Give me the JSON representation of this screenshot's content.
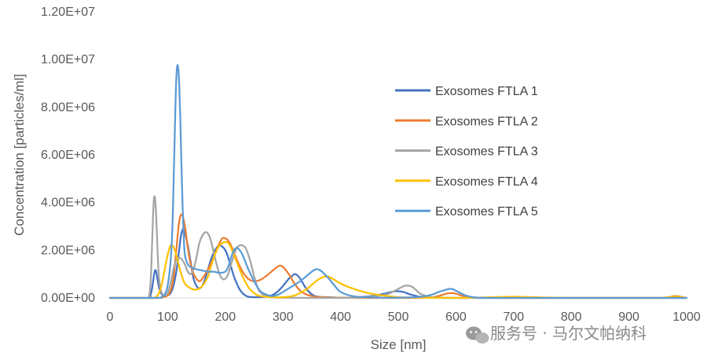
{
  "chart_data": {
    "type": "line",
    "title": "",
    "xlabel": "Size [nm]",
    "ylabel": "Concentration [particles/ml]",
    "xlim": [
      0,
      1000
    ],
    "ylim": [
      0,
      12000000
    ],
    "x_ticks": [
      0,
      100,
      200,
      300,
      400,
      500,
      600,
      700,
      800,
      900,
      1000
    ],
    "x_tick_labels": [
      "0",
      "100",
      "200",
      "300",
      "400",
      "500",
      "600",
      "700",
      "800",
      "900",
      "1000"
    ],
    "y_ticks": [
      0,
      2000000,
      4000000,
      6000000,
      8000000,
      10000000,
      12000000
    ],
    "y_tick_labels": [
      "0.00E+00",
      "2.00E+06",
      "4.00E+06",
      "6.00E+06",
      "8.00E+06",
      "1.00E+07",
      "1.20E+07"
    ],
    "grid": false,
    "legend_position": "right",
    "series": [
      {
        "name": "Exosomes FTLA 1",
        "color": "#4472C4",
        "x": [
          0,
          65,
          70,
          73,
          76,
          78,
          80,
          83,
          86,
          90,
          95,
          100,
          105,
          110,
          115,
          120,
          123,
          127,
          130,
          135,
          140,
          145,
          150,
          155,
          160,
          165,
          170,
          175,
          180,
          185,
          190,
          195,
          200,
          205,
          210,
          215,
          220,
          225,
          230,
          235,
          240,
          250,
          260,
          270,
          280,
          290,
          300,
          310,
          315,
          320,
          325,
          330,
          335,
          340,
          350,
          360,
          380,
          400,
          430,
          460,
          480,
          490,
          500,
          510,
          520,
          540,
          560,
          600,
          650,
          700,
          800,
          900,
          950,
          980,
          1000
        ],
        "y": [
          0,
          0,
          100000,
          400000,
          900000,
          1150000,
          1100000,
          700000,
          350000,
          150000,
          80000,
          100000,
          200000,
          500000,
          1100000,
          2000000,
          2600000,
          2900000,
          2700000,
          2200000,
          1500000,
          800000,
          500000,
          400000,
          500000,
          800000,
          1200000,
          1600000,
          1900000,
          2100000,
          2200000,
          2150000,
          2000000,
          1700000,
          1300000,
          900000,
          600000,
          350000,
          200000,
          100000,
          50000,
          30000,
          30000,
          50000,
          100000,
          250000,
          500000,
          800000,
          900000,
          1000000,
          950000,
          800000,
          600000,
          400000,
          150000,
          50000,
          30000,
          10000,
          30000,
          100000,
          200000,
          260000,
          280000,
          240000,
          150000,
          40000,
          10000,
          0,
          0,
          0,
          0,
          0,
          0,
          0,
          0
        ]
      },
      {
        "name": "Exosomes FTLA 2",
        "color": "#ED7D31",
        "x": [
          0,
          80,
          90,
          100,
          105,
          110,
          115,
          120,
          125,
          130,
          135,
          140,
          145,
          150,
          155,
          160,
          170,
          180,
          185,
          190,
          195,
          200,
          205,
          210,
          215,
          220,
          230,
          240,
          250,
          260,
          270,
          280,
          290,
          295,
          300,
          310,
          320,
          330,
          340,
          350,
          360,
          380,
          400,
          450,
          500,
          540,
          560,
          570,
          580,
          590,
          600,
          610,
          620,
          640,
          700,
          800,
          900,
          960,
          980,
          1000
        ],
        "y": [
          0,
          0,
          20000,
          100000,
          300000,
          800000,
          2000000,
          3200000,
          3500000,
          3000000,
          2100000,
          1400000,
          1000000,
          800000,
          700000,
          800000,
          1200000,
          1700000,
          2000000,
          2300000,
          2500000,
          2500000,
          2400000,
          2200000,
          1900000,
          1600000,
          1100000,
          800000,
          700000,
          750000,
          900000,
          1100000,
          1300000,
          1350000,
          1300000,
          1000000,
          600000,
          300000,
          150000,
          80000,
          40000,
          20000,
          10000,
          0,
          0,
          0,
          30000,
          80000,
          150000,
          200000,
          180000,
          100000,
          40000,
          10000,
          0,
          0,
          0,
          0,
          80000,
          0
        ]
      },
      {
        "name": "Exosomes FTLA 3",
        "color": "#A5A5A5",
        "x": [
          0,
          65,
          68,
          70,
          72,
          74,
          76,
          78,
          80,
          82,
          84,
          86,
          90,
          95,
          100,
          105,
          110,
          115,
          120,
          125,
          130,
          135,
          140,
          145,
          150,
          155,
          160,
          165,
          170,
          175,
          180,
          185,
          190,
          195,
          200,
          205,
          210,
          215,
          220,
          225,
          230,
          235,
          240,
          245,
          250,
          255,
          260,
          270,
          280,
          300,
          350,
          400,
          450,
          480,
          490,
          500,
          510,
          515,
          520,
          525,
          530,
          540,
          560,
          600,
          700,
          800,
          900,
          1000
        ],
        "y": [
          0,
          0,
          100000,
          500000,
          1500000,
          3000000,
          4100000,
          4200000,
          3500000,
          2300000,
          1200000,
          600000,
          200000,
          100000,
          200000,
          600000,
          1200000,
          1600000,
          1700000,
          1600000,
          1400000,
          1100000,
          1000000,
          1200000,
          1700000,
          2300000,
          2600000,
          2750000,
          2700000,
          2400000,
          1900000,
          1400000,
          1000000,
          800000,
          800000,
          1000000,
          1400000,
          1800000,
          2100000,
          2200000,
          2200000,
          2100000,
          1800000,
          1400000,
          900000,
          500000,
          250000,
          80000,
          30000,
          10000,
          0,
          0,
          50000,
          150000,
          250000,
          380000,
          500000,
          520000,
          500000,
          450000,
          350000,
          150000,
          30000,
          0,
          0,
          0,
          0,
          0
        ]
      },
      {
        "name": "Exosomes FTLA 4",
        "color": "#FFC000",
        "x": [
          0,
          75,
          80,
          85,
          90,
          95,
          100,
          105,
          110,
          115,
          120,
          125,
          130,
          140,
          150,
          160,
          170,
          175,
          180,
          185,
          190,
          195,
          200,
          205,
          210,
          220,
          230,
          240,
          250,
          260,
          280,
          300,
          320,
          340,
          350,
          360,
          370,
          375,
          380,
          390,
          400,
          420,
          440,
          460,
          480,
          500,
          540,
          600,
          650,
          680,
          700,
          720,
          750,
          800,
          900,
          950,
          980,
          1000
        ],
        "y": [
          0,
          0,
          50000,
          200000,
          600000,
          1200000,
          1800000,
          2200000,
          2150000,
          1800000,
          1300000,
          900000,
          600000,
          400000,
          350000,
          500000,
          900000,
          1300000,
          1700000,
          2000000,
          2200000,
          2300000,
          2350000,
          2300000,
          2100000,
          1500000,
          900000,
          450000,
          200000,
          80000,
          30000,
          30000,
          100000,
          350000,
          550000,
          750000,
          880000,
          900000,
          880000,
          750000,
          600000,
          400000,
          250000,
          150000,
          80000,
          30000,
          10000,
          0,
          20000,
          40000,
          50000,
          40000,
          20000,
          0,
          0,
          0,
          50000,
          0
        ]
      },
      {
        "name": "Exosomes FTLA 5",
        "color": "#5B9BD5",
        "x": [
          0,
          80,
          90,
          95,
          100,
          105,
          108,
          110,
          112,
          114,
          116,
          118,
          120,
          122,
          124,
          126,
          128,
          130,
          135,
          140,
          150,
          160,
          170,
          180,
          190,
          200,
          205,
          210,
          215,
          220,
          225,
          230,
          240,
          250,
          260,
          270,
          280,
          290,
          300,
          310,
          320,
          330,
          340,
          350,
          355,
          360,
          365,
          370,
          380,
          390,
          400,
          420,
          450,
          500,
          540,
          560,
          570,
          580,
          585,
          590,
          595,
          600,
          610,
          620,
          640,
          700,
          800,
          1000
        ],
        "y": [
          0,
          0,
          50000,
          150000,
          500000,
          1500000,
          2800000,
          4500000,
          6500000,
          8500000,
          9600000,
          9700000,
          9000000,
          7500000,
          5500000,
          3800000,
          2500000,
          1800000,
          1400000,
          1300000,
          1200000,
          1150000,
          1100000,
          1100000,
          1050000,
          1100000,
          1300000,
          1700000,
          2000000,
          2100000,
          2000000,
          1800000,
          1200000,
          700000,
          300000,
          150000,
          80000,
          120000,
          250000,
          400000,
          550000,
          700000,
          900000,
          1100000,
          1180000,
          1200000,
          1150000,
          1050000,
          800000,
          500000,
          250000,
          80000,
          20000,
          10000,
          50000,
          150000,
          250000,
          320000,
          360000,
          380000,
          360000,
          300000,
          180000,
          80000,
          10000,
          0,
          0,
          0
        ]
      }
    ]
  },
  "watermark": {
    "icon": "wechat-icon",
    "text": "服务号 · 马尔文帕纳科"
  }
}
